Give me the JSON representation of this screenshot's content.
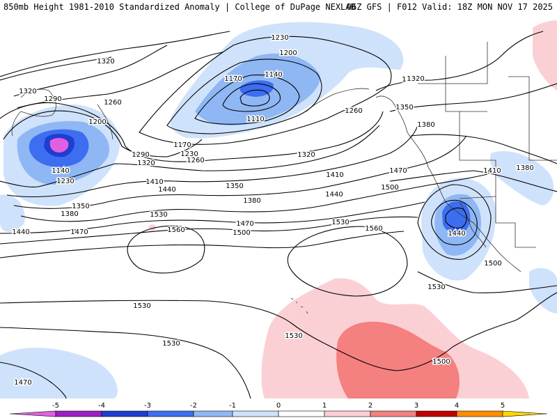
{
  "header": {
    "title_left": "850mb Height 1981-2010 Standardized Anomaly | College of DuPage NEXLAB",
    "title_right": "06Z GFS | F012 Valid: 18Z MON NOV 17 2025"
  },
  "colors": {
    "below_5": "#e060e0",
    "n5_n4": "#9b1fc4",
    "n4_n3": "#1e3ecf",
    "n3_n2": "#3d6ef0",
    "n2_n1": "#8fb7f4",
    "n1_0": "#cfe2fb",
    "zero_1": "#ffffff",
    "p1_p2": "#fbd0d4",
    "p2_p3": "#f48080",
    "p3_p4": "#c00000",
    "p4_p5": "#ff8c00",
    "above_5": "#ffd700"
  },
  "legend": {
    "ticks": [
      "-5",
      "-4",
      "-3",
      "-2",
      "-1",
      "0",
      "1",
      "2",
      "3",
      "4",
      "5"
    ]
  },
  "contour_labels": [
    {
      "text": "1320"
    },
    {
      "text": "1230"
    },
    {
      "text": "1200"
    },
    {
      "text": "1170"
    },
    {
      "text": "1140"
    },
    {
      "text": "1290"
    },
    {
      "text": "1320"
    },
    {
      "text": "1320"
    },
    {
      "text": "1290"
    },
    {
      "text": "1260"
    },
    {
      "text": "1110"
    },
    {
      "text": "1200"
    },
    {
      "text": "1260"
    },
    {
      "text": "1350"
    },
    {
      "text": "1380"
    },
    {
      "text": "1170"
    },
    {
      "text": "1230"
    },
    {
      "text": "1290"
    },
    {
      "text": "1260"
    },
    {
      "text": "1320"
    },
    {
      "text": "1140"
    },
    {
      "text": "1230"
    },
    {
      "text": "1320"
    },
    {
      "text": "1410"
    },
    {
      "text": "1380"
    },
    {
      "text": "1410"
    },
    {
      "text": "1440"
    },
    {
      "text": "1350"
    },
    {
      "text": "1410"
    },
    {
      "text": "1440"
    },
    {
      "text": "1470"
    },
    {
      "text": "1500"
    },
    {
      "text": "1380"
    },
    {
      "text": "1350"
    },
    {
      "text": "1380"
    },
    {
      "text": "1440"
    },
    {
      "text": "1470"
    },
    {
      "text": "1530"
    },
    {
      "text": "1470"
    },
    {
      "text": "1500"
    },
    {
      "text": "1530"
    },
    {
      "text": "1560"
    },
    {
      "text": "1560"
    },
    {
      "text": "1440"
    },
    {
      "text": "1500"
    },
    {
      "text": "1530"
    },
    {
      "text": "1530"
    },
    {
      "text": "1530"
    },
    {
      "text": "1500"
    },
    {
      "text": "1530"
    },
    {
      "text": "1470"
    }
  ]
}
